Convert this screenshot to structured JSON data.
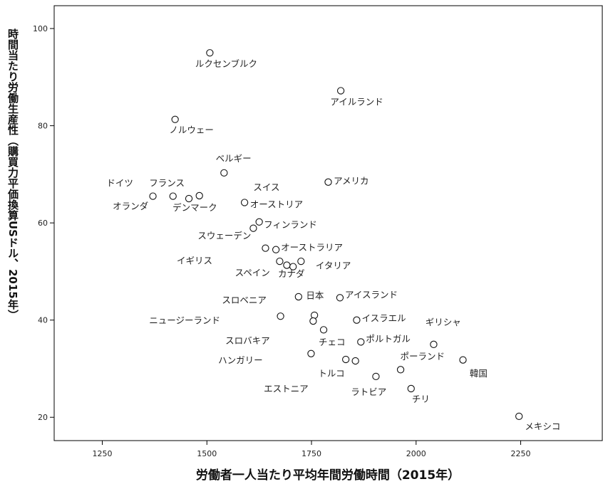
{
  "chart_data": {
    "type": "scatter",
    "xlabel": "労働者一人当たり平均年間労働時間（2015年）",
    "ylabel": "時間当たり労働生産性（購買力平価換算USドル、2015年）",
    "xlim": [
      1135,
      2445
    ],
    "ylim": [
      15.2,
      104.7
    ],
    "xticks": [
      "1250",
      "1500",
      "1750",
      "2000",
      "2250"
    ],
    "yticks": [
      "20",
      "40",
      "60",
      "80",
      "100"
    ],
    "grid": false,
    "points": [
      {
        "label": "ルクセンブルク",
        "x": 1507,
        "y": 95.0
      },
      {
        "label": "アイルランド",
        "x": 1820,
        "y": 87.2
      },
      {
        "label": "ノルウェー",
        "x": 1424,
        "y": 81.3
      },
      {
        "label": "ベルギー",
        "x": 1541,
        "y": 70.3
      },
      {
        "label": "アメリカ",
        "x": 1790,
        "y": 68.4
      },
      {
        "label": "ドイツ",
        "x": 1371,
        "y": 65.5
      },
      {
        "label": "フランス",
        "x": 1482,
        "y": 65.6
      },
      {
        "label": "デンマーク",
        "x": 1457,
        "y": 65.0
      },
      {
        "label": "オランダ",
        "x": 1419,
        "y": 65.5
      },
      {
        "label": "スイス",
        "x": 1590,
        "y": 64.2
      },
      {
        "label": "オーストリア",
        "x": 1625,
        "y": 60.2
      },
      {
        "label": "フィンランド",
        "x": 1611,
        "y": 58.9
      },
      {
        "label": "スウェーデン",
        "x": 1640,
        "y": 54.8
      },
      {
        "label": "オーストラリア",
        "x": 1665,
        "y": 54.5
      },
      {
        "label": "イギリス",
        "x": 1674,
        "y": 52.1
      },
      {
        "label": "スペイン",
        "x": 1691,
        "y": 51.3
      },
      {
        "label": "カナダ",
        "x": 1706,
        "y": 51.0
      },
      {
        "label": "イタリア",
        "x": 1725,
        "y": 52.1
      },
      {
        "label": "日本",
        "x": 1719,
        "y": 44.8
      },
      {
        "label": "アイスランド",
        "x": 1818,
        "y": 44.6
      },
      {
        "label": "スロベニア",
        "x": 1676,
        "y": 40.8
      },
      {
        "label": "ニュージーランド",
        "x": 1757,
        "y": 41.0
      },
      {
        "label": "スロバキア",
        "x": 1754,
        "y": 39.8
      },
      {
        "label": "イスラエル",
        "x": 1858,
        "y": 40.0
      },
      {
        "label": "チェコ",
        "x": 1779,
        "y": 38.0
      },
      {
        "label": "ポルトガル",
        "x": 1868,
        "y": 35.5
      },
      {
        "label": "ギリシャ",
        "x": 2042,
        "y": 35.0
      },
      {
        "label": "ハンガリー",
        "x": 1749,
        "y": 33.1
      },
      {
        "label": "トルコ",
        "x": 1832,
        "y": 31.9
      },
      {
        "label": "トルコ2",
        "x": 1855,
        "y": 31.6
      },
      {
        "label": "ポーランド",
        "x": 2112,
        "y": 31.8
      },
      {
        "label": "韓国",
        "x": 1963,
        "y": 29.8
      },
      {
        "label": "エストニア",
        "x": 1904,
        "y": 28.4
      },
      {
        "label": "チリ",
        "x": 1988,
        "y": 25.9
      },
      {
        "label": "メキシコ",
        "x": 2246,
        "y": 20.2
      }
    ],
    "labels": [
      {
        "text": "ルクセンブルク",
        "x": 1472,
        "y": 92.1
      },
      {
        "text": "アイルランド",
        "x": 1795,
        "y": 84.3
      },
      {
        "text": "ノルウェー",
        "x": 1410,
        "y": 78.5
      },
      {
        "text": "ベルギー",
        "x": 1521,
        "y": 72.6
      },
      {
        "text": "アメリカ",
        "x": 1803,
        "y": 68.0
      },
      {
        "text": "ドイツ",
        "x": 1260,
        "y": 67.6
      },
      {
        "text": "フランス",
        "x": 1362,
        "y": 67.6
      },
      {
        "text": "スイス",
        "x": 1611,
        "y": 66.7
      },
      {
        "text": "オランダ",
        "x": 1275,
        "y": 62.8
      },
      {
        "text": "デンマーク",
        "x": 1418,
        "y": 62.5
      },
      {
        "text": "オーストリア",
        "x": 1603,
        "y": 63.2
      },
      {
        "text": "フィンランド",
        "x": 1636,
        "y": 59.0
      },
      {
        "text": "スウェーデン",
        "x": 1478,
        "y": 56.7
      },
      {
        "text": "オーストラリア",
        "x": 1677,
        "y": 54.3
      },
      {
        "text": "イギリス",
        "x": 1428,
        "y": 51.6
      },
      {
        "text": "イタリア",
        "x": 1760,
        "y": 50.6
      },
      {
        "text": "スペイン",
        "x": 1567,
        "y": 49.1
      },
      {
        "text": "カナダ",
        "x": 1670,
        "y": 48.9
      },
      {
        "text": "日本",
        "x": 1737,
        "y": 44.4
      },
      {
        "text": "アイスランド",
        "x": 1830,
        "y": 44.6
      },
      {
        "text": "スロベニア",
        "x": 1536,
        "y": 43.5
      },
      {
        "text": "ニュージーランド",
        "x": 1362,
        "y": 39.3
      },
      {
        "text": "イスラエル",
        "x": 1870,
        "y": 39.7
      },
      {
        "text": "ギリシャ",
        "x": 2022,
        "y": 38.9
      },
      {
        "text": "スロバキア",
        "x": 1544,
        "y": 35.1
      },
      {
        "text": "チェコ",
        "x": 1767,
        "y": 34.8
      },
      {
        "text": "ポルトガル",
        "x": 1880,
        "y": 35.5
      },
      {
        "text": "ハンガリー",
        "x": 1527,
        "y": 31.1
      },
      {
        "text": "ポーランド",
        "x": 1962,
        "y": 31.9
      },
      {
        "text": "韓国",
        "x": 2128,
        "y": 28.4
      },
      {
        "text": "トルコ",
        "x": 1766,
        "y": 28.4
      },
      {
        "text": "エストニア",
        "x": 1636,
        "y": 25.2
      },
      {
        "text": "ラトビア",
        "x": 1844,
        "y": 24.6
      },
      {
        "text": "チリ",
        "x": 1990,
        "y": 23.1
      },
      {
        "text": "メキシコ",
        "x": 2260,
        "y": 17.5
      }
    ]
  }
}
